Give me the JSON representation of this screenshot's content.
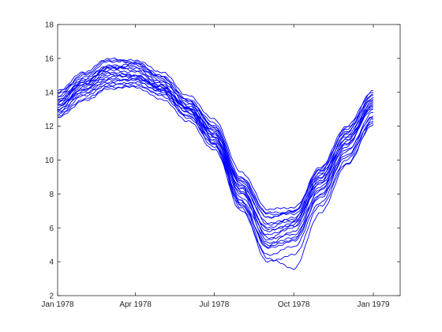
{
  "chart_data": {
    "type": "line",
    "title": "",
    "xlabel": "",
    "ylabel": "",
    "x_axis_type": "date",
    "xlim": [
      "1978-01-01",
      "1979-02-01"
    ],
    "ylim": [
      2,
      18
    ],
    "x_ticks": [
      {
        "value": "1978-01-01",
        "label": "Jan 1978"
      },
      {
        "value": "1978-04-01",
        "label": "Apr 1978"
      },
      {
        "value": "1978-07-01",
        "label": "Jul 1978"
      },
      {
        "value": "1978-10-01",
        "label": "Oct 1978"
      },
      {
        "value": "1979-01-01",
        "label": "Jan 1979"
      }
    ],
    "y_ticks": [
      2,
      4,
      6,
      8,
      10,
      12,
      14,
      16,
      18
    ],
    "grid": false,
    "box": true,
    "line_color": "#0000ff",
    "axis_color": "#262626",
    "series": [
      {
        "values": [
          [
            "1978-01-01",
            13.0
          ],
          [
            "1978-02-01",
            14.2
          ],
          [
            "1978-03-01",
            14.8
          ],
          [
            "1978-04-01",
            14.7
          ],
          [
            "1978-05-01",
            14.0
          ],
          [
            "1978-06-01",
            12.8
          ],
          [
            "1978-07-01",
            11.2
          ],
          [
            "1978-08-01",
            8.0
          ],
          [
            "1978-09-01",
            6.0
          ],
          [
            "1978-10-01",
            6.6
          ],
          [
            "1978-11-01",
            8.8
          ],
          [
            "1978-12-01",
            11.3
          ],
          [
            "1979-01-01",
            13.2
          ]
        ]
      },
      {
        "values": [
          [
            "1978-01-01",
            13.6
          ],
          [
            "1978-02-01",
            14.6
          ],
          [
            "1978-03-01",
            15.4
          ],
          [
            "1978-04-01",
            15.6
          ],
          [
            "1978-05-01",
            14.8
          ],
          [
            "1978-06-01",
            13.2
          ],
          [
            "1978-07-01",
            11.8
          ],
          [
            "1978-08-01",
            8.7
          ],
          [
            "1978-09-01",
            6.6
          ],
          [
            "1978-10-01",
            7.0
          ],
          [
            "1978-11-01",
            9.5
          ],
          [
            "1978-12-01",
            11.8
          ],
          [
            "1979-01-01",
            13.8
          ]
        ]
      },
      {
        "values": [
          [
            "1978-01-01",
            12.6
          ],
          [
            "1978-02-01",
            13.6
          ],
          [
            "1978-03-01",
            14.3
          ],
          [
            "1978-04-01",
            14.3
          ],
          [
            "1978-05-01",
            13.6
          ],
          [
            "1978-06-01",
            12.3
          ],
          [
            "1978-07-01",
            10.6
          ],
          [
            "1978-08-01",
            7.3
          ],
          [
            "1978-09-01",
            5.0
          ],
          [
            "1978-10-01",
            5.8
          ],
          [
            "1978-11-01",
            8.2
          ],
          [
            "1978-12-01",
            10.6
          ],
          [
            "1979-01-01",
            12.5
          ]
        ]
      },
      {
        "values": [
          [
            "1978-01-01",
            14.0
          ],
          [
            "1978-02-01",
            15.0
          ],
          [
            "1978-03-01",
            15.8
          ],
          [
            "1978-04-01",
            15.9
          ],
          [
            "1978-05-01",
            15.2
          ],
          [
            "1978-06-01",
            13.8
          ],
          [
            "1978-07-01",
            12.4
          ],
          [
            "1978-08-01",
            9.3
          ],
          [
            "1978-09-01",
            7.1
          ],
          [
            "1978-10-01",
            7.2
          ],
          [
            "1978-11-01",
            9.2
          ],
          [
            "1978-12-01",
            11.5
          ],
          [
            "1979-01-01",
            13.6
          ]
        ]
      },
      {
        "values": [
          [
            "1978-01-01",
            13.2
          ],
          [
            "1978-02-01",
            14.4
          ],
          [
            "1978-03-01",
            15.2
          ],
          [
            "1978-04-01",
            15.0
          ],
          [
            "1978-05-01",
            14.2
          ],
          [
            "1978-06-01",
            12.9
          ],
          [
            "1978-07-01",
            11.4
          ],
          [
            "1978-08-01",
            7.8
          ],
          [
            "1978-09-01",
            5.6
          ],
          [
            "1978-10-01",
            6.0
          ],
          [
            "1978-11-01",
            8.6
          ],
          [
            "1978-12-01",
            11.0
          ],
          [
            "1979-01-01",
            13.0
          ]
        ]
      },
      {
        "values": [
          [
            "1978-01-01",
            12.8
          ],
          [
            "1978-02-01",
            14.0
          ],
          [
            "1978-03-01",
            14.6
          ],
          [
            "1978-04-01",
            14.8
          ],
          [
            "1978-05-01",
            14.3
          ],
          [
            "1978-06-01",
            13.0
          ],
          [
            "1978-07-01",
            11.0
          ],
          [
            "1978-08-01",
            7.5
          ],
          [
            "1978-09-01",
            4.8
          ],
          [
            "1978-10-01",
            5.2
          ],
          [
            "1978-11-01",
            7.8
          ],
          [
            "1978-12-01",
            10.2
          ],
          [
            "1979-01-01",
            12.3
          ]
        ]
      },
      {
        "values": [
          [
            "1978-01-01",
            13.4
          ],
          [
            "1978-02-01",
            14.8
          ],
          [
            "1978-03-01",
            15.6
          ],
          [
            "1978-04-01",
            15.4
          ],
          [
            "1978-05-01",
            14.6
          ],
          [
            "1978-06-01",
            13.4
          ],
          [
            "1978-07-01",
            11.9
          ],
          [
            "1978-08-01",
            8.9
          ],
          [
            "1978-09-01",
            6.8
          ],
          [
            "1978-10-01",
            6.8
          ],
          [
            "1978-11-01",
            9.0
          ],
          [
            "1978-12-01",
            11.6
          ],
          [
            "1979-01-01",
            13.9
          ]
        ]
      },
      {
        "values": [
          [
            "1978-01-01",
            12.9
          ],
          [
            "1978-02-01",
            13.9
          ],
          [
            "1978-03-01",
            14.5
          ],
          [
            "1978-04-01",
            14.5
          ],
          [
            "1978-05-01",
            13.8
          ],
          [
            "1978-06-01",
            12.5
          ],
          [
            "1978-07-01",
            10.8
          ],
          [
            "1978-08-01",
            7.0
          ],
          [
            "1978-09-01",
            4.4
          ],
          [
            "1978-10-01",
            4.9
          ],
          [
            "1978-11-01",
            7.5
          ],
          [
            "1978-12-01",
            10.0
          ],
          [
            "1979-01-01",
            12.4
          ]
        ]
      },
      {
        "values": [
          [
            "1978-01-01",
            13.8
          ],
          [
            "1978-02-01",
            14.9
          ],
          [
            "1978-03-01",
            15.5
          ],
          [
            "1978-04-01",
            15.7
          ],
          [
            "1978-05-01",
            15.0
          ],
          [
            "1978-06-01",
            13.6
          ],
          [
            "1978-07-01",
            12.0
          ],
          [
            "1978-08-01",
            8.5
          ],
          [
            "1978-09-01",
            6.3
          ],
          [
            "1978-10-01",
            6.5
          ],
          [
            "1978-11-01",
            9.3
          ],
          [
            "1978-12-01",
            11.9
          ],
          [
            "1979-01-01",
            14.0
          ]
        ]
      },
      {
        "values": [
          [
            "1978-01-01",
            13.1
          ],
          [
            "1978-02-01",
            14.3
          ],
          [
            "1978-03-01",
            15.1
          ],
          [
            "1978-04-01",
            15.0
          ],
          [
            "1978-05-01",
            14.1
          ],
          [
            "1978-06-01",
            12.6
          ],
          [
            "1978-07-01",
            11.1
          ],
          [
            "1978-08-01",
            7.6
          ],
          [
            "1978-09-01",
            5.3
          ],
          [
            "1978-10-01",
            6.2
          ],
          [
            "1978-11-01",
            8.9
          ],
          [
            "1978-12-01",
            11.2
          ],
          [
            "1979-01-01",
            13.1
          ]
        ]
      },
      {
        "values": [
          [
            "1978-01-01",
            13.5
          ],
          [
            "1978-02-01",
            14.6
          ],
          [
            "1978-03-01",
            15.5
          ],
          [
            "1978-04-01",
            15.3
          ],
          [
            "1978-05-01",
            14.4
          ],
          [
            "1978-06-01",
            13.0
          ],
          [
            "1978-07-01",
            11.5
          ],
          [
            "1978-08-01",
            8.2
          ],
          [
            "1978-09-01",
            5.8
          ],
          [
            "1978-10-01",
            6.3
          ],
          [
            "1978-11-01",
            9.1
          ],
          [
            "1978-12-01",
            11.4
          ],
          [
            "1979-01-01",
            13.4
          ]
        ]
      },
      {
        "values": [
          [
            "1978-01-01",
            12.7
          ],
          [
            "1978-02-01",
            13.8
          ],
          [
            "1978-03-01",
            14.4
          ],
          [
            "1978-04-01",
            14.6
          ],
          [
            "1978-05-01",
            14.1
          ],
          [
            "1978-06-01",
            12.8
          ],
          [
            "1978-07-01",
            11.0
          ],
          [
            "1978-08-01",
            7.2
          ],
          [
            "1978-09-01",
            4.0
          ],
          [
            "1978-10-01",
            4.4
          ],
          [
            "1978-11-01",
            7.3
          ],
          [
            "1978-12-01",
            9.8
          ],
          [
            "1979-01-01",
            12.1
          ]
        ]
      },
      {
        "values": [
          [
            "1978-01-01",
            14.1
          ],
          [
            "1978-02-01",
            15.2
          ],
          [
            "1978-03-01",
            16.0
          ],
          [
            "1978-04-01",
            15.7
          ],
          [
            "1978-05-01",
            14.9
          ],
          [
            "1978-06-01",
            13.5
          ],
          [
            "1978-07-01",
            12.0
          ],
          [
            "1978-08-01",
            8.8
          ],
          [
            "1978-09-01",
            6.6
          ],
          [
            "1978-10-01",
            7.0
          ],
          [
            "1978-11-01",
            9.6
          ],
          [
            "1978-12-01",
            12.0
          ],
          [
            "1979-01-01",
            14.1
          ]
        ]
      },
      {
        "values": [
          [
            "1978-01-01",
            13.3
          ],
          [
            "1978-02-01",
            14.5
          ],
          [
            "1978-03-01",
            15.0
          ],
          [
            "1978-04-01",
            14.9
          ],
          [
            "1978-05-01",
            14.3
          ],
          [
            "1978-06-01",
            13.1
          ],
          [
            "1978-07-01",
            11.6
          ],
          [
            "1978-08-01",
            8.4
          ],
          [
            "1978-09-01",
            5.4
          ],
          [
            "1978-10-01",
            5.6
          ],
          [
            "1978-11-01",
            8.0
          ],
          [
            "1978-12-01",
            10.5
          ],
          [
            "1979-01-01",
            12.8
          ]
        ]
      },
      {
        "values": [
          [
            "1978-01-01",
            13.0
          ],
          [
            "1978-02-01",
            14.1
          ],
          [
            "1978-03-01",
            14.7
          ],
          [
            "1978-04-01",
            14.8
          ],
          [
            "1978-05-01",
            14.2
          ],
          [
            "1978-06-01",
            13.1
          ],
          [
            "1978-07-01",
            11.3
          ],
          [
            "1978-08-01",
            7.6
          ],
          [
            "1978-09-01",
            4.2
          ],
          [
            "1978-10-01",
            3.6
          ],
          [
            "1978-11-01",
            6.9
          ],
          [
            "1978-12-01",
            9.7
          ],
          [
            "1979-01-01",
            12.2
          ]
        ]
      },
      {
        "values": [
          [
            "1978-01-01",
            13.7
          ],
          [
            "1978-02-01",
            14.7
          ],
          [
            "1978-03-01",
            15.4
          ],
          [
            "1978-04-01",
            15.5
          ],
          [
            "1978-05-01",
            14.7
          ],
          [
            "1978-06-01",
            13.3
          ],
          [
            "1978-07-01",
            11.7
          ],
          [
            "1978-08-01",
            8.6
          ],
          [
            "1978-09-01",
            6.2
          ],
          [
            "1978-10-01",
            6.4
          ],
          [
            "1978-11-01",
            8.4
          ],
          [
            "1978-12-01",
            10.9
          ],
          [
            "1979-01-01",
            13.3
          ]
        ]
      },
      {
        "values": [
          [
            "1978-01-01",
            12.5
          ],
          [
            "1978-02-01",
            13.5
          ],
          [
            "1978-03-01",
            14.2
          ],
          [
            "1978-04-01",
            14.4
          ],
          [
            "1978-05-01",
            13.9
          ],
          [
            "1978-06-01",
            12.6
          ],
          [
            "1978-07-01",
            10.9
          ],
          [
            "1978-08-01",
            7.4
          ],
          [
            "1978-09-01",
            4.9
          ],
          [
            "1978-10-01",
            5.3
          ],
          [
            "1978-11-01",
            7.9
          ],
          [
            "1978-12-01",
            10.3
          ],
          [
            "1979-01-01",
            12.6
          ]
        ]
      },
      {
        "values": [
          [
            "1978-01-01",
            13.9
          ],
          [
            "1978-02-01",
            15.1
          ],
          [
            "1978-03-01",
            15.9
          ],
          [
            "1978-04-01",
            15.8
          ],
          [
            "1978-05-01",
            14.9
          ],
          [
            "1978-06-01",
            13.5
          ],
          [
            "1978-07-01",
            12.2
          ],
          [
            "1978-08-01",
            9.0
          ],
          [
            "1978-09-01",
            6.9
          ],
          [
            "1978-10-01",
            6.9
          ],
          [
            "1978-11-01",
            9.4
          ],
          [
            "1978-12-01",
            11.7
          ],
          [
            "1979-01-01",
            13.7
          ]
        ]
      },
      {
        "values": [
          [
            "1978-01-01",
            13.2
          ],
          [
            "1978-02-01",
            14.2
          ],
          [
            "1978-03-01",
            14.9
          ],
          [
            "1978-04-01",
            15.0
          ],
          [
            "1978-05-01",
            14.4
          ],
          [
            "1978-06-01",
            13.0
          ],
          [
            "1978-07-01",
            11.4
          ],
          [
            "1978-08-01",
            8.1
          ],
          [
            "1978-09-01",
            5.1
          ],
          [
            "1978-10-01",
            5.4
          ],
          [
            "1978-11-01",
            8.3
          ],
          [
            "1978-12-01",
            10.8
          ],
          [
            "1979-01-01",
            13.2
          ]
        ]
      },
      {
        "values": [
          [
            "1978-01-01",
            13.5
          ],
          [
            "1978-02-01",
            14.5
          ],
          [
            "1978-03-01",
            15.3
          ],
          [
            "1978-04-01",
            15.2
          ],
          [
            "1978-05-01",
            14.5
          ],
          [
            "1978-06-01",
            13.1
          ],
          [
            "1978-07-01",
            11.6
          ],
          [
            "1978-08-01",
            8.3
          ],
          [
            "1978-09-01",
            5.9
          ],
          [
            "1978-10-01",
            6.1
          ],
          [
            "1978-11-01",
            8.7
          ],
          [
            "1978-12-01",
            11.1
          ],
          [
            "1979-01-01",
            13.5
          ]
        ]
      }
    ]
  }
}
